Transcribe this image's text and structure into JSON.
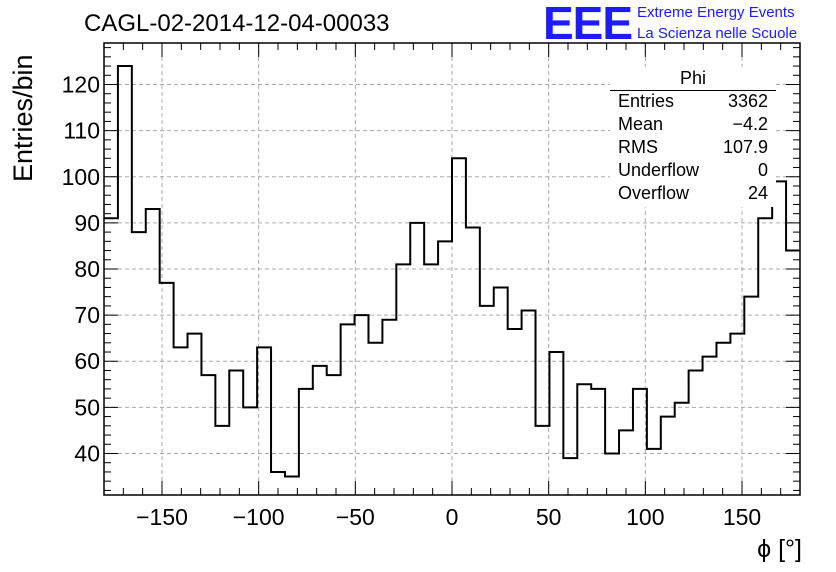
{
  "chart_data": {
    "type": "histogram",
    "title": "CAGL-02-2014-12-04-00033",
    "xlabel": "ϕ [°]",
    "ylabel": "Entries/bin",
    "xlim": [
      -180,
      180
    ],
    "ylim": [
      31,
      129
    ],
    "grid": true,
    "bin_edges_start": -180,
    "bin_width": 7.2,
    "bin_counts": [
      91,
      124,
      88,
      93,
      77,
      63,
      66,
      57,
      46,
      58,
      50,
      63,
      36,
      35,
      54,
      59,
      57,
      68,
      70,
      64,
      69,
      81,
      90,
      81,
      86,
      104,
      89,
      72,
      76,
      67,
      71,
      46,
      62,
      39,
      55,
      54,
      40,
      45,
      54,
      41,
      48,
      51,
      58,
      61,
      64,
      66,
      74,
      91,
      99,
      84
    ],
    "xticks": [
      -150,
      -100,
      -50,
      0,
      50,
      100,
      150
    ],
    "xtick_labels": [
      "−150",
      "−100",
      "−50",
      "0",
      "50",
      "100",
      "150"
    ],
    "yticks": [
      40,
      50,
      60,
      70,
      80,
      90,
      100,
      110,
      120
    ],
    "ytick_labels": [
      "40",
      "50",
      "60",
      "70",
      "80",
      "90",
      "100",
      "110",
      "120"
    ]
  },
  "stats": {
    "title": "Phi",
    "rows": [
      {
        "label": "Entries",
        "value": "3362"
      },
      {
        "label": "Mean",
        "value": "−4.2"
      },
      {
        "label": "RMS",
        "value": "107.9"
      },
      {
        "label": "Underflow",
        "value": "0"
      },
      {
        "label": "Overflow",
        "value": "24"
      }
    ]
  },
  "logo": {
    "text": "EEE",
    "line1": "Extreme Energy Events",
    "line2": "La Scienza nelle Scuole",
    "color": "#1c1cff"
  }
}
